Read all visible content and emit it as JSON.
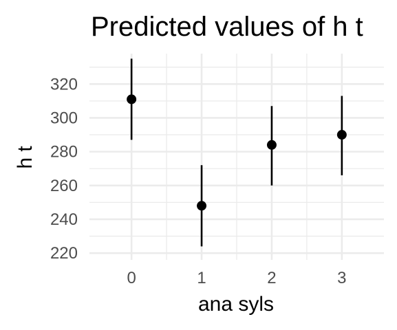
{
  "chart_data": {
    "type": "scatter",
    "title": "Predicted values of h t",
    "xlabel": "ana syls",
    "ylabel": "h t",
    "x_categories": [
      "0",
      "1",
      "2",
      "3"
    ],
    "y_ticks": [
      220,
      240,
      260,
      280,
      300,
      320
    ],
    "ylim": [
      216,
      338
    ],
    "grid": true,
    "points": [
      {
        "x": "0",
        "y": 311,
        "lower": 287,
        "upper": 335
      },
      {
        "x": "1",
        "y": 248,
        "lower": 224,
        "upper": 272
      },
      {
        "x": "2",
        "y": 284,
        "lower": 260,
        "upper": 307
      },
      {
        "x": "3",
        "y": 290,
        "lower": 266,
        "upper": 313
      }
    ]
  }
}
